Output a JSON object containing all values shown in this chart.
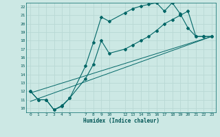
{
  "xlabel": "Humidex (Indice chaleur)",
  "bg_color": "#cce8e4",
  "grid_color": "#b8d8d4",
  "line_color": "#006666",
  "xlim": [
    -0.5,
    23.5
  ],
  "ylim": [
    9.5,
    22.5
  ],
  "xticks": [
    0,
    1,
    2,
    3,
    4,
    5,
    7,
    8,
    9,
    10,
    12,
    13,
    14,
    15,
    16,
    17,
    18,
    19,
    20,
    21,
    22,
    23
  ],
  "yticks": [
    10,
    11,
    12,
    13,
    14,
    15,
    16,
    17,
    18,
    19,
    20,
    21,
    22
  ],
  "line1_x": [
    0,
    1,
    2,
    3,
    4,
    5,
    7,
    8,
    9,
    10,
    12,
    13,
    14,
    15,
    16,
    17,
    18,
    19,
    20,
    21,
    22,
    23
  ],
  "line1_y": [
    12,
    11,
    11,
    9.8,
    10.2,
    11.2,
    15.0,
    17.8,
    20.8,
    20.3,
    21.3,
    21.8,
    22.1,
    22.3,
    22.5,
    21.5,
    22.5,
    21.2,
    19.5,
    18.5,
    18.5,
    18.5
  ],
  "line2_x": [
    0,
    1,
    2,
    3,
    4,
    5,
    7,
    8,
    9,
    10,
    12,
    13,
    14,
    15,
    16,
    17,
    18,
    19,
    20,
    21,
    22,
    23
  ],
  "line2_y": [
    12,
    11,
    11,
    9.8,
    10.3,
    11.2,
    13.5,
    15.2,
    18.0,
    16.5,
    17.0,
    17.5,
    18.0,
    18.5,
    19.2,
    20.0,
    20.5,
    21.0,
    21.5,
    18.5,
    18.5,
    18.5
  ],
  "line3_x": [
    0,
    23
  ],
  "line3_y": [
    10.8,
    18.5
  ],
  "line4_x": [
    0,
    23
  ],
  "line4_y": [
    11.8,
    18.5
  ]
}
